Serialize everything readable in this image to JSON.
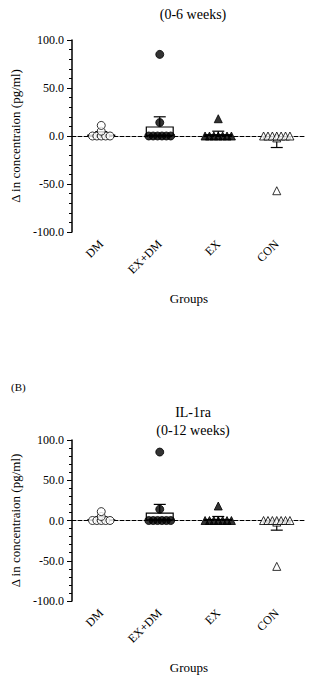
{
  "chart_data": [
    {
      "type": "bar",
      "title": "(0-6 weeks)",
      "categories": [
        "DM",
        "EX+DM",
        "EX",
        "CON"
      ],
      "values": [
        1.5,
        10,
        2,
        -4
      ],
      "errors": [
        3,
        10,
        3,
        8
      ],
      "points": [
        [
          0,
          0,
          0,
          0,
          0,
          5,
          11
        ],
        [
          85,
          14,
          0,
          0,
          0,
          0,
          0,
          0
        ],
        [
          18,
          0,
          0,
          0,
          0,
          0,
          0,
          0
        ],
        [
          -57,
          -2,
          0,
          0,
          0,
          0,
          0,
          0,
          0
        ]
      ],
      "markers": [
        "circle-open",
        "circle",
        "triangle",
        "triangle-open"
      ],
      "color": "#000000",
      "x_label": "Groups",
      "y_label": "Δ in concentraion (pg/ml)",
      "ylim": [
        -100,
        100
      ],
      "yticks": [
        {
          "value": -100,
          "label": "-100.0"
        },
        {
          "value": -50,
          "label": "-50.0"
        },
        {
          "value": 0,
          "label": "0.0"
        },
        {
          "value": 50,
          "label": "50.0"
        },
        {
          "value": 100,
          "label": "100.0"
        }
      ]
    },
    {
      "type": "bar",
      "title": "IL-1ra",
      "subtitle": "(0-12 weeks)",
      "annotations": [
        "(B)"
      ],
      "categories": [
        "DM",
        "EX+DM",
        "EX",
        "CON"
      ],
      "values": [
        1.5,
        10,
        2,
        -4
      ],
      "errors": [
        3,
        10,
        3,
        8
      ],
      "points": [
        [
          0,
          0,
          0,
          0,
          0,
          5,
          11
        ],
        [
          85,
          14,
          0,
          0,
          0,
          0,
          0,
          0
        ],
        [
          18,
          0,
          0,
          0,
          0,
          0,
          0,
          0
        ],
        [
          -57,
          -2,
          0,
          0,
          0,
          0,
          0,
          0,
          0
        ]
      ],
      "markers": [
        "circle-open",
        "circle",
        "triangle",
        "triangle-open"
      ],
      "color": "#000000",
      "x_label": "Groups",
      "y_label": "Δ in concentraion (pg/ml)",
      "ylim": [
        -100,
        100
      ],
      "yticks": [
        {
          "value": -100,
          "label": "-100.0"
        },
        {
          "value": -50,
          "label": "-50.0"
        },
        {
          "value": 0,
          "label": "0.0"
        },
        {
          "value": 50,
          "label": "50.0"
        },
        {
          "value": 100,
          "label": "100.0"
        }
      ]
    }
  ]
}
